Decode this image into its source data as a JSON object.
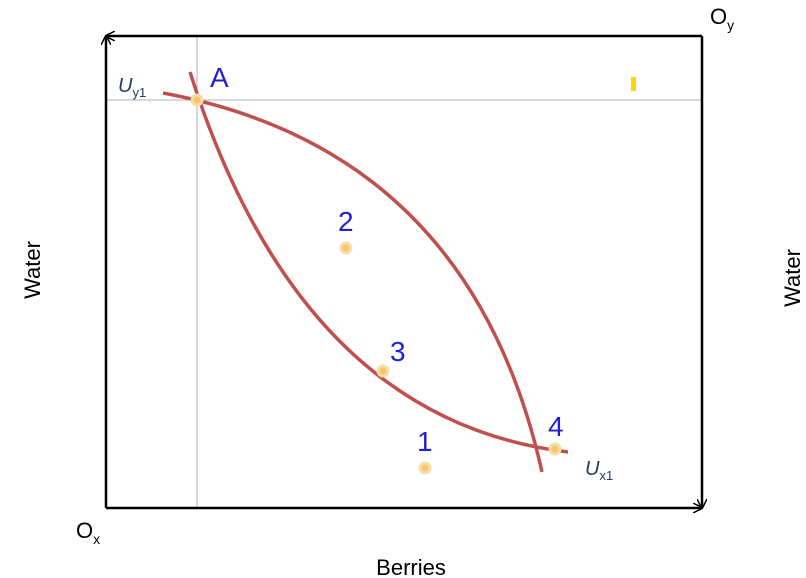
{
  "origin_x_label": "O",
  "origin_x_sub": "x",
  "origin_y_label": "O",
  "origin_y_sub": "y",
  "x_axis_label": "Berries",
  "y_axis_label_left": "Water",
  "y_axis_label_right": "Water",
  "curves": {
    "uy1": {
      "letter": "U",
      "sub": "y1"
    },
    "ux1": {
      "letter": "U",
      "sub": "x1"
    }
  },
  "points": {
    "A": "A",
    "p1": "1",
    "p2": "2",
    "p3": "3",
    "p4": "4"
  },
  "colors": {
    "curve": "#c0504d",
    "point_fill": "#f9c46b",
    "point_label": "#1f1fd6",
    "curve_label": "#1f3a6e",
    "box": "#000000",
    "guide": "#b0b0b0",
    "marker": "#ffd700"
  }
}
